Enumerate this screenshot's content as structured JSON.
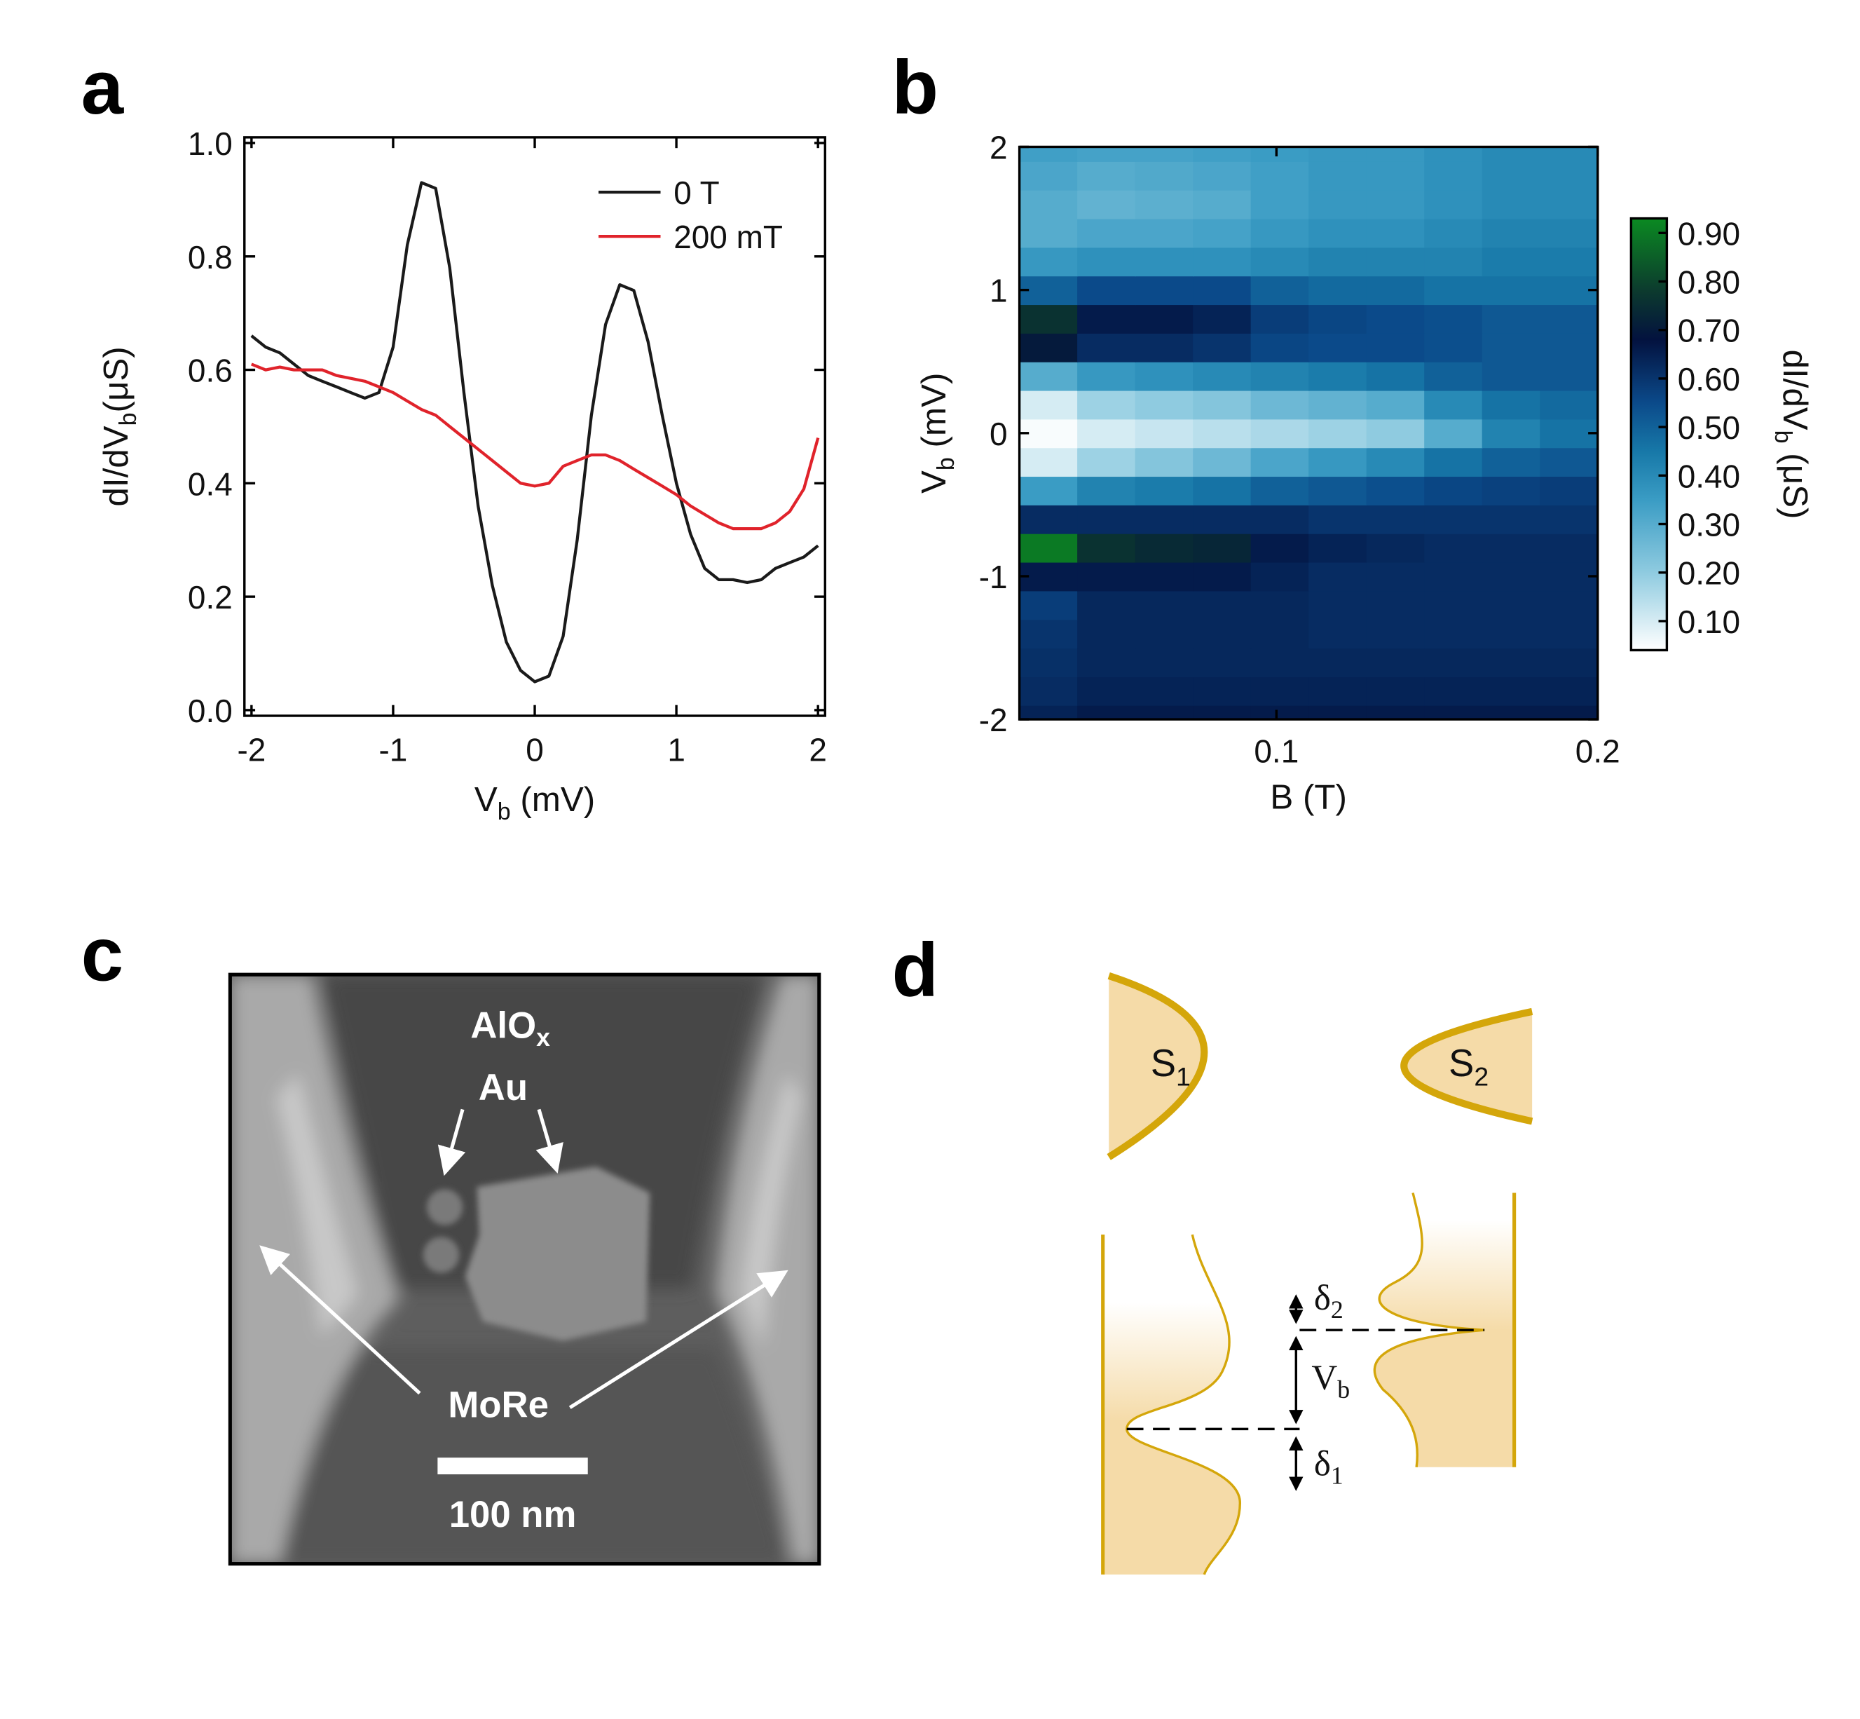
{
  "panels": [
    "a",
    "b",
    "c",
    "d"
  ],
  "chart_data": [
    {
      "type": "line",
      "xlabel": [
        "V",
        "b",
        " (mV)"
      ],
      "ylabel": [
        "dI/dV",
        "b",
        "(μS)"
      ],
      "x": [
        -2,
        -1.9,
        -1.8,
        -1.7,
        -1.6,
        -1.5,
        -1.4,
        -1.3,
        -1.2,
        -1.1,
        -1,
        -0.9,
        -0.8,
        -0.7,
        -0.6,
        -0.5,
        -0.4,
        -0.3,
        -0.2,
        -0.1,
        0,
        0.1,
        0.2,
        0.3,
        0.4,
        0.5,
        0.6,
        0.7,
        0.8,
        0.9,
        1,
        1.1,
        1.2,
        1.3,
        1.4,
        1.5,
        1.6,
        1.7,
        1.8,
        1.9,
        2
      ],
      "xlim": [
        -2.05,
        2.05
      ],
      "xticks": [
        -2,
        -1,
        0,
        1,
        2
      ],
      "ylim": [
        -0.01,
        1.01
      ],
      "yticks": [
        {
          "value": 0,
          "label": "0.0"
        },
        0.2,
        0.4,
        0.6,
        0.8,
        {
          "value": 1,
          "label": "1.0"
        }
      ],
      "legend": "upper right",
      "series": [
        {
          "name": "0 T",
          "color": "#1a1a1a",
          "values": [
            0.66,
            0.64,
            0.63,
            0.61,
            0.59,
            0.58,
            0.57,
            0.56,
            0.55,
            0.56,
            0.64,
            0.82,
            0.93,
            0.92,
            0.78,
            0.56,
            0.36,
            0.22,
            0.12,
            0.07,
            0.05,
            0.06,
            0.13,
            0.3,
            0.52,
            0.68,
            0.75,
            0.74,
            0.65,
            0.52,
            0.4,
            0.31,
            0.25,
            0.23,
            0.23,
            0.225,
            0.23,
            0.25,
            0.26,
            0.27,
            0.29
          ]
        },
        {
          "name": "200 mT",
          "color": "#e0232b",
          "values": [
            0.61,
            0.6,
            0.605,
            0.6,
            0.6,
            0.6,
            0.59,
            0.585,
            0.58,
            0.57,
            0.56,
            0.545,
            0.53,
            0.52,
            0.5,
            0.48,
            0.46,
            0.44,
            0.42,
            0.4,
            0.395,
            0.4,
            0.43,
            0.44,
            0.45,
            0.45,
            0.44,
            0.425,
            0.41,
            0.395,
            0.38,
            0.36,
            0.345,
            0.33,
            0.32,
            0.32,
            0.32,
            0.33,
            0.35,
            0.39,
            0.48
          ]
        }
      ]
    },
    {
      "type": "heatmap",
      "xlabel": "B (T)",
      "ylabel": [
        "V",
        "b",
        " (mV)"
      ],
      "x_bins": [
        0.02,
        0.038,
        0.056,
        0.074,
        0.092,
        0.11,
        0.128,
        0.146,
        0.164,
        0.182,
        0.2
      ],
      "y": [
        -2,
        -1.8,
        -1.6,
        -1.4,
        -1.2,
        -1,
        -0.8,
        -0.6,
        -0.4,
        -0.2,
        0,
        0.2,
        0.4,
        0.6,
        0.8,
        1,
        1.2,
        1.4,
        1.6,
        1.8,
        2
      ],
      "z": [
        [
          0.64,
          0.66,
          0.66,
          0.66,
          0.66,
          0.66,
          0.66,
          0.66,
          0.66,
          0.66
        ],
        [
          0.62,
          0.64,
          0.64,
          0.64,
          0.64,
          0.64,
          0.64,
          0.64,
          0.64,
          0.64
        ],
        [
          0.61,
          0.63,
          0.63,
          0.63,
          0.63,
          0.63,
          0.63,
          0.63,
          0.63,
          0.63
        ],
        [
          0.6,
          0.63,
          0.63,
          0.63,
          0.63,
          0.62,
          0.62,
          0.62,
          0.62,
          0.62
        ],
        [
          0.58,
          0.63,
          0.63,
          0.63,
          0.63,
          0.62,
          0.62,
          0.62,
          0.62,
          0.62
        ],
        [
          0.66,
          0.66,
          0.66,
          0.66,
          0.64,
          0.62,
          0.62,
          0.62,
          0.62,
          0.62
        ],
        [
          0.9,
          0.76,
          0.74,
          0.73,
          0.66,
          0.64,
          0.63,
          0.62,
          0.62,
          0.62
        ],
        [
          0.62,
          0.62,
          0.62,
          0.62,
          0.62,
          0.6,
          0.6,
          0.6,
          0.6,
          0.6
        ],
        [
          0.35,
          0.42,
          0.44,
          0.46,
          0.5,
          0.52,
          0.54,
          0.56,
          0.57,
          0.58
        ],
        [
          0.1,
          0.18,
          0.22,
          0.26,
          0.32,
          0.36,
          0.4,
          0.46,
          0.5,
          0.52
        ],
        [
          0.05,
          0.1,
          0.12,
          0.14,
          0.16,
          0.18,
          0.2,
          0.3,
          0.42,
          0.46
        ],
        [
          0.1,
          0.18,
          0.2,
          0.22,
          0.26,
          0.28,
          0.3,
          0.4,
          0.46,
          0.48
        ],
        [
          0.3,
          0.36,
          0.38,
          0.4,
          0.42,
          0.44,
          0.46,
          0.5,
          0.52,
          0.52
        ],
        [
          0.7,
          0.62,
          0.62,
          0.6,
          0.56,
          0.55,
          0.55,
          0.54,
          0.52,
          0.52
        ],
        [
          0.76,
          0.66,
          0.66,
          0.64,
          0.58,
          0.56,
          0.55,
          0.54,
          0.52,
          0.52
        ],
        [
          0.5,
          0.55,
          0.55,
          0.55,
          0.5,
          0.48,
          0.48,
          0.46,
          0.46,
          0.46
        ],
        [
          0.36,
          0.38,
          0.38,
          0.38,
          0.4,
          0.42,
          0.42,
          0.42,
          0.44,
          0.44
        ],
        [
          0.3,
          0.32,
          0.32,
          0.33,
          0.36,
          0.38,
          0.38,
          0.4,
          0.42,
          0.42
        ],
        [
          0.3,
          0.28,
          0.29,
          0.3,
          0.34,
          0.36,
          0.36,
          0.38,
          0.4,
          0.4
        ],
        [
          0.32,
          0.3,
          0.31,
          0.32,
          0.34,
          0.36,
          0.36,
          0.38,
          0.4,
          0.4
        ],
        [
          0.34,
          0.33,
          0.33,
          0.34,
          0.35,
          0.36,
          0.36,
          0.38,
          0.4,
          0.4
        ]
      ],
      "xlim": [
        0.02,
        0.2
      ],
      "xticks": [
        0.1,
        0.2
      ],
      "ylim": [
        -2,
        2
      ],
      "yticks": [
        -2,
        -1,
        0,
        1,
        2
      ],
      "colorbar": {
        "label": [
          "dI/dV",
          "b",
          " (μS)"
        ],
        "lim": [
          0.04,
          0.93
        ],
        "ticks": [
          {
            "value": 0.1,
            "label": "0.10"
          },
          {
            "value": 0.2,
            "label": "0.20"
          },
          {
            "value": 0.3,
            "label": "0.30"
          },
          {
            "value": 0.4,
            "label": "0.40"
          },
          {
            "value": 0.5,
            "label": "0.50"
          },
          {
            "value": 0.6,
            "label": "0.60"
          },
          {
            "value": 0.7,
            "label": "0.70"
          },
          {
            "value": 0.8,
            "label": "0.80"
          },
          {
            "value": 0.9,
            "label": "0.90"
          }
        ],
        "colors": [
          [
            0.04,
            "#ffffff"
          ],
          [
            0.2,
            "#8fcbe0"
          ],
          [
            0.35,
            "#3a9cc4"
          ],
          [
            0.45,
            "#1778a8"
          ],
          [
            0.55,
            "#0b4a8a"
          ],
          [
            0.68,
            "#03123f"
          ],
          [
            0.78,
            "#0c3a2e"
          ],
          [
            0.93,
            "#0b8a22"
          ]
        ]
      }
    }
  ],
  "sem_image": {
    "oxide": [
      "AlO",
      "x"
    ],
    "gold": "Au",
    "electrode": "MoRe",
    "scale_bar": "100 nm"
  },
  "diagram": {
    "left_lead": [
      "S",
      "1"
    ],
    "right_lead": [
      "S",
      "2"
    ],
    "delta_2": [
      "δ",
      "2"
    ],
    "bias": [
      "V",
      "b"
    ],
    "delta_1": [
      "δ",
      "1"
    ]
  }
}
